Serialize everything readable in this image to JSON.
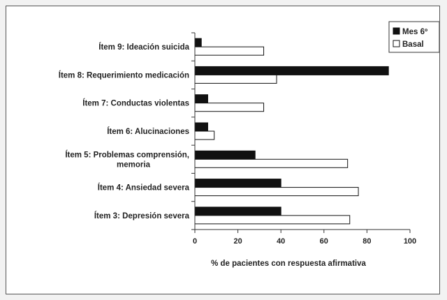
{
  "chart_data": {
    "type": "bar",
    "orientation": "horizontal",
    "title": "",
    "xlabel": "% de pacientes con respuesta afirmativa",
    "ylabel": "",
    "xlim": [
      0,
      100
    ],
    "xticks": [
      "0",
      "20",
      "40",
      "60",
      "80",
      "100"
    ],
    "grid": false,
    "legend_position": "top-right",
    "categories": [
      [
        "Ítem 9: Ideación suicida"
      ],
      [
        "Ítem 8: Requerimiento medicación"
      ],
      [
        "Ítem 7: Conductas violentas"
      ],
      [
        "Ítem 6: Alucinaciones"
      ],
      [
        "Ítem 5: Problemas comprensión,",
        "memoria"
      ],
      [
        "Ítem 4: Ansiedad severa"
      ],
      [
        "Ítem 3: Depresión severa"
      ]
    ],
    "series": [
      {
        "name": "Mes 6º",
        "color": "#111111",
        "values": [
          3,
          90,
          6,
          6,
          28,
          40,
          40
        ]
      },
      {
        "name": "Basal",
        "color": "#ffffff",
        "values": [
          32,
          38,
          32,
          9,
          71,
          76,
          72
        ]
      }
    ]
  }
}
